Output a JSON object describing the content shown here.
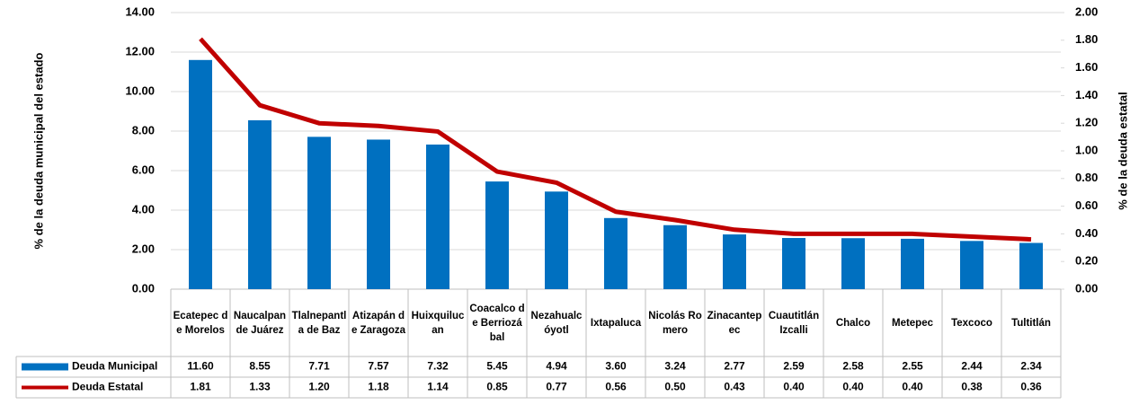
{
  "chart_data": {
    "type": "bar_line_table",
    "categories": [
      "Ecatepec de Morelos",
      "Naucalpan de Juárez",
      "Tlalnepantla de Baz",
      "Atizapán de Zaragoza",
      "Huixquilucan",
      "Coacalco de Berriozábal",
      "Nezahualcóyotl",
      "Ixtapaluca",
      "Nicolás Romero",
      "Zinacantepec",
      "Cuautitlán Izcalli",
      "Chalco",
      "Metepec",
      "Texcoco",
      "Tultitlán"
    ],
    "series": [
      {
        "name": "Deuda Municipal",
        "color": "#0070c0",
        "type": "bar",
        "values": [
          11.6,
          8.55,
          7.71,
          7.57,
          7.32,
          5.45,
          4.94,
          3.6,
          3.24,
          2.77,
          2.59,
          2.58,
          2.55,
          2.44,
          2.34
        ],
        "value_labels": [
          "11.60",
          "8.55",
          "7.71",
          "7.57",
          "7.32",
          "5.45",
          "4.94",
          "3.60",
          "3.24",
          "2.77",
          "2.59",
          "2.58",
          "2.55",
          "2.44",
          "2.34"
        ]
      },
      {
        "name": "Deuda Estatal",
        "color": "#c00000",
        "type": "line",
        "axis": "y2",
        "values": [
          1.81,
          1.33,
          1.2,
          1.18,
          1.14,
          0.85,
          0.77,
          0.56,
          0.5,
          0.43,
          0.4,
          0.4,
          0.4,
          0.38,
          0.36
        ],
        "value_labels": [
          "1.81",
          "1.33",
          "1.20",
          "1.18",
          "1.14",
          "0.85",
          "0.77",
          "0.56",
          "0.50",
          "0.43",
          "0.40",
          "0.40",
          "0.40",
          "0.38",
          "0.36"
        ]
      }
    ],
    "ylabel": "% de la deuda municipal del estado",
    "y2label": "% de la deuda estatal",
    "ylim": [
      0,
      14
    ],
    "yticks": [
      {
        "value": 0,
        "label": "0.00"
      },
      {
        "value": 2,
        "label": "2.00"
      },
      {
        "value": 4,
        "label": "4.00"
      },
      {
        "value": 6,
        "label": "6.00"
      },
      {
        "value": 8,
        "label": "8.00"
      },
      {
        "value": 10,
        "label": "10.00"
      },
      {
        "value": 12,
        "label": "12.00"
      },
      {
        "value": 14,
        "label": "14.00"
      }
    ],
    "y2lim": [
      0,
      2
    ],
    "y2ticks": [
      {
        "value": 0,
        "label": "0.00"
      },
      {
        "value": 0.2,
        "label": "0.20"
      },
      {
        "value": 0.4,
        "label": "0.40"
      },
      {
        "value": 0.6,
        "label": "0.60"
      },
      {
        "value": 0.8,
        "label": "0.80"
      },
      {
        "value": 1,
        "label": "1.00"
      },
      {
        "value": 1.2,
        "label": "1.20"
      },
      {
        "value": 1.4,
        "label": "1.40"
      },
      {
        "value": 1.6,
        "label": "1.60"
      },
      {
        "value": 1.8,
        "label": "1.80"
      },
      {
        "value": 2,
        "label": "2.00"
      }
    ],
    "grid": true
  }
}
